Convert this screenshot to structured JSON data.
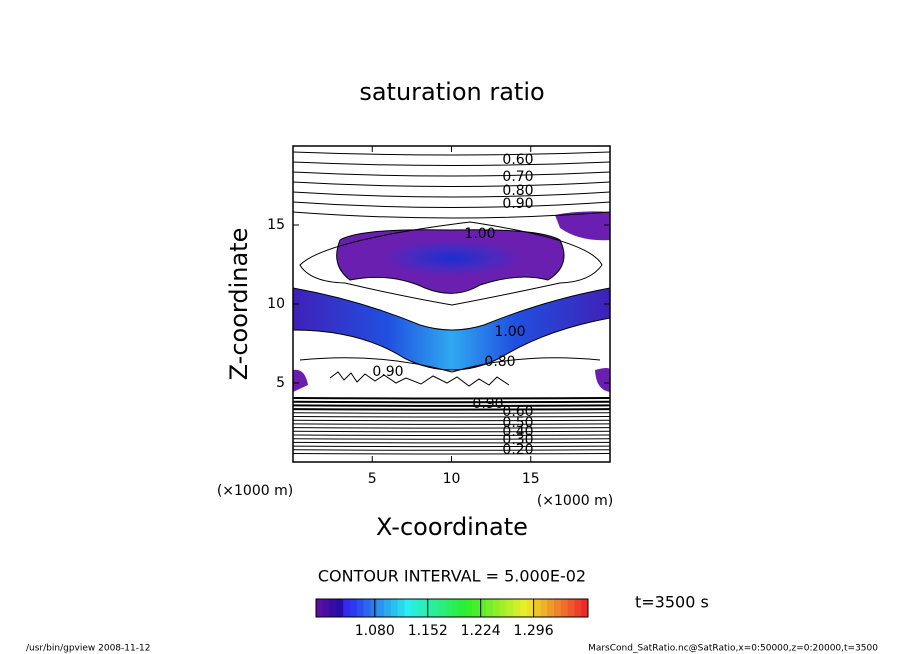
{
  "chart_data": {
    "type": "contour",
    "title": "saturation ratio",
    "xlabel": "X-coordinate",
    "ylabel": "Z-coordinate",
    "xunit": "(×1000 m)",
    "yunit": "(×1000 m)",
    "xlim": [
      0,
      20
    ],
    "ylim": [
      0,
      20
    ],
    "xticks": [
      5,
      10,
      15
    ],
    "yticks": [
      5,
      10,
      15
    ],
    "contour_labels": [
      "0.60",
      "0.70",
      "0.80",
      "0.90",
      "1.00",
      "1.00",
      "0.90",
      "0.80",
      "0.90",
      "0.60",
      "0.50",
      "0.40",
      "0.30",
      "0.20"
    ],
    "contour_interval": "CONTOUR INTERVAL = 5.000E-02",
    "colorbar": {
      "lim": [
        1.0,
        1.37
      ],
      "ticks": [
        {
          "value": 1.08,
          "label": "1.080"
        },
        {
          "value": 1.152,
          "label": "1.152"
        },
        {
          "value": 1.224,
          "label": "1.224"
        },
        {
          "value": 1.296,
          "label": "1.296"
        }
      ]
    },
    "time_label": "t=3500 s",
    "footer_left": "/usr/bin/gpview  2008-11-12",
    "footer_right": "MarsCond_SatRatio.nc@SatRatio,x=0:50000,z=0:20000,t=3500"
  }
}
